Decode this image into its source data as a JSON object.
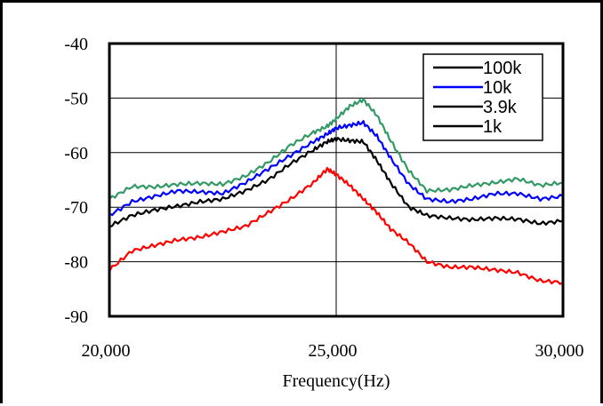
{
  "chart_data": {
    "type": "line",
    "title": "",
    "xlabel": "Frequency(Hz)",
    "ylabel": "",
    "xlim": [
      20000,
      30000
    ],
    "ylim": [
      -90,
      -40
    ],
    "x_ticks": [
      20000,
      25000,
      30000
    ],
    "x_tick_labels": [
      "20,000",
      "25,000",
      "30,000"
    ],
    "y_ticks": [
      -40,
      -50,
      -60,
      -70,
      -80,
      -90
    ],
    "y_tick_labels": [
      "-40",
      "-50",
      "-60",
      "-70",
      "-80",
      "-90"
    ],
    "grid": "horizontal lines at -50, -60, -70, -80 and vertical line at 25,000",
    "legend_position": "top-right",
    "legend": [
      {
        "label": "100k",
        "color": "#000000"
      },
      {
        "label": "10k",
        "color": "#0000ff"
      },
      {
        "label": "3.9k",
        "color": "#000000"
      },
      {
        "label": "1k",
        "color": "#000000"
      }
    ],
    "series": [
      {
        "color": "#339966",
        "x": [
          20000,
          20500,
          21000,
          21500,
          22000,
          22500,
          23000,
          23500,
          24000,
          24500,
          24800,
          25000,
          25300,
          25600,
          25900,
          26200,
          26600,
          27000,
          27500,
          28000,
          28500,
          29000,
          29500,
          30000
        ],
        "y": [
          -68.5,
          -66.2,
          -66.3,
          -65.8,
          -65.6,
          -65.8,
          -64.3,
          -61.8,
          -58.6,
          -56.3,
          -55.2,
          -53.8,
          -51.5,
          -50.3,
          -53.2,
          -57.8,
          -63.3,
          -67.0,
          -66.8,
          -66.0,
          -65.5,
          -64.8,
          -66.0,
          -65.5
        ]
      },
      {
        "color": "#0000ff",
        "x": [
          20000,
          20500,
          21000,
          21500,
          22000,
          22500,
          23000,
          23500,
          24000,
          24500,
          24800,
          25000,
          25300,
          25600,
          25900,
          26200,
          26600,
          27000,
          27500,
          28000,
          28500,
          29000,
          29500,
          30000
        ],
        "y": [
          -71.5,
          -69.0,
          -68.0,
          -67.0,
          -67.2,
          -67.5,
          -65.5,
          -63.0,
          -60.5,
          -58.0,
          -56.6,
          -55.5,
          -55.0,
          -54.5,
          -57.0,
          -61.0,
          -65.8,
          -68.5,
          -69.0,
          -68.5,
          -67.5,
          -67.5,
          -68.5,
          -68.0
        ]
      },
      {
        "color": "#000000",
        "x": [
          20000,
          20500,
          21000,
          21500,
          22000,
          22500,
          23000,
          23500,
          24000,
          24500,
          24800,
          25000,
          25300,
          25600,
          25900,
          26200,
          26600,
          27000,
          27500,
          28000,
          28500,
          29000,
          29500,
          30000
        ],
        "y": [
          -73.5,
          -71.5,
          -70.5,
          -69.8,
          -69.0,
          -68.5,
          -67.0,
          -65.0,
          -62.0,
          -59.5,
          -58.0,
          -57.5,
          -57.8,
          -58.0,
          -61.5,
          -65.5,
          -70.0,
          -71.5,
          -72.0,
          -72.3,
          -72.0,
          -72.2,
          -73.0,
          -72.5
        ]
      },
      {
        "color": "#ff0000",
        "x": [
          20000,
          20500,
          21000,
          21500,
          22000,
          22500,
          23000,
          23500,
          24000,
          24500,
          24800,
          25000,
          25300,
          25600,
          25900,
          26200,
          26600,
          27000,
          27500,
          28000,
          28500,
          29000,
          29500,
          30000
        ],
        "y": [
          -81.5,
          -78.0,
          -77.0,
          -76.0,
          -75.5,
          -74.5,
          -73.5,
          -71.0,
          -68.5,
          -65.5,
          -63.0,
          -64.0,
          -66.0,
          -68.5,
          -71.0,
          -74.0,
          -76.5,
          -80.0,
          -81.0,
          -81.0,
          -81.5,
          -82.0,
          -83.5,
          -83.8
        ]
      }
    ]
  }
}
